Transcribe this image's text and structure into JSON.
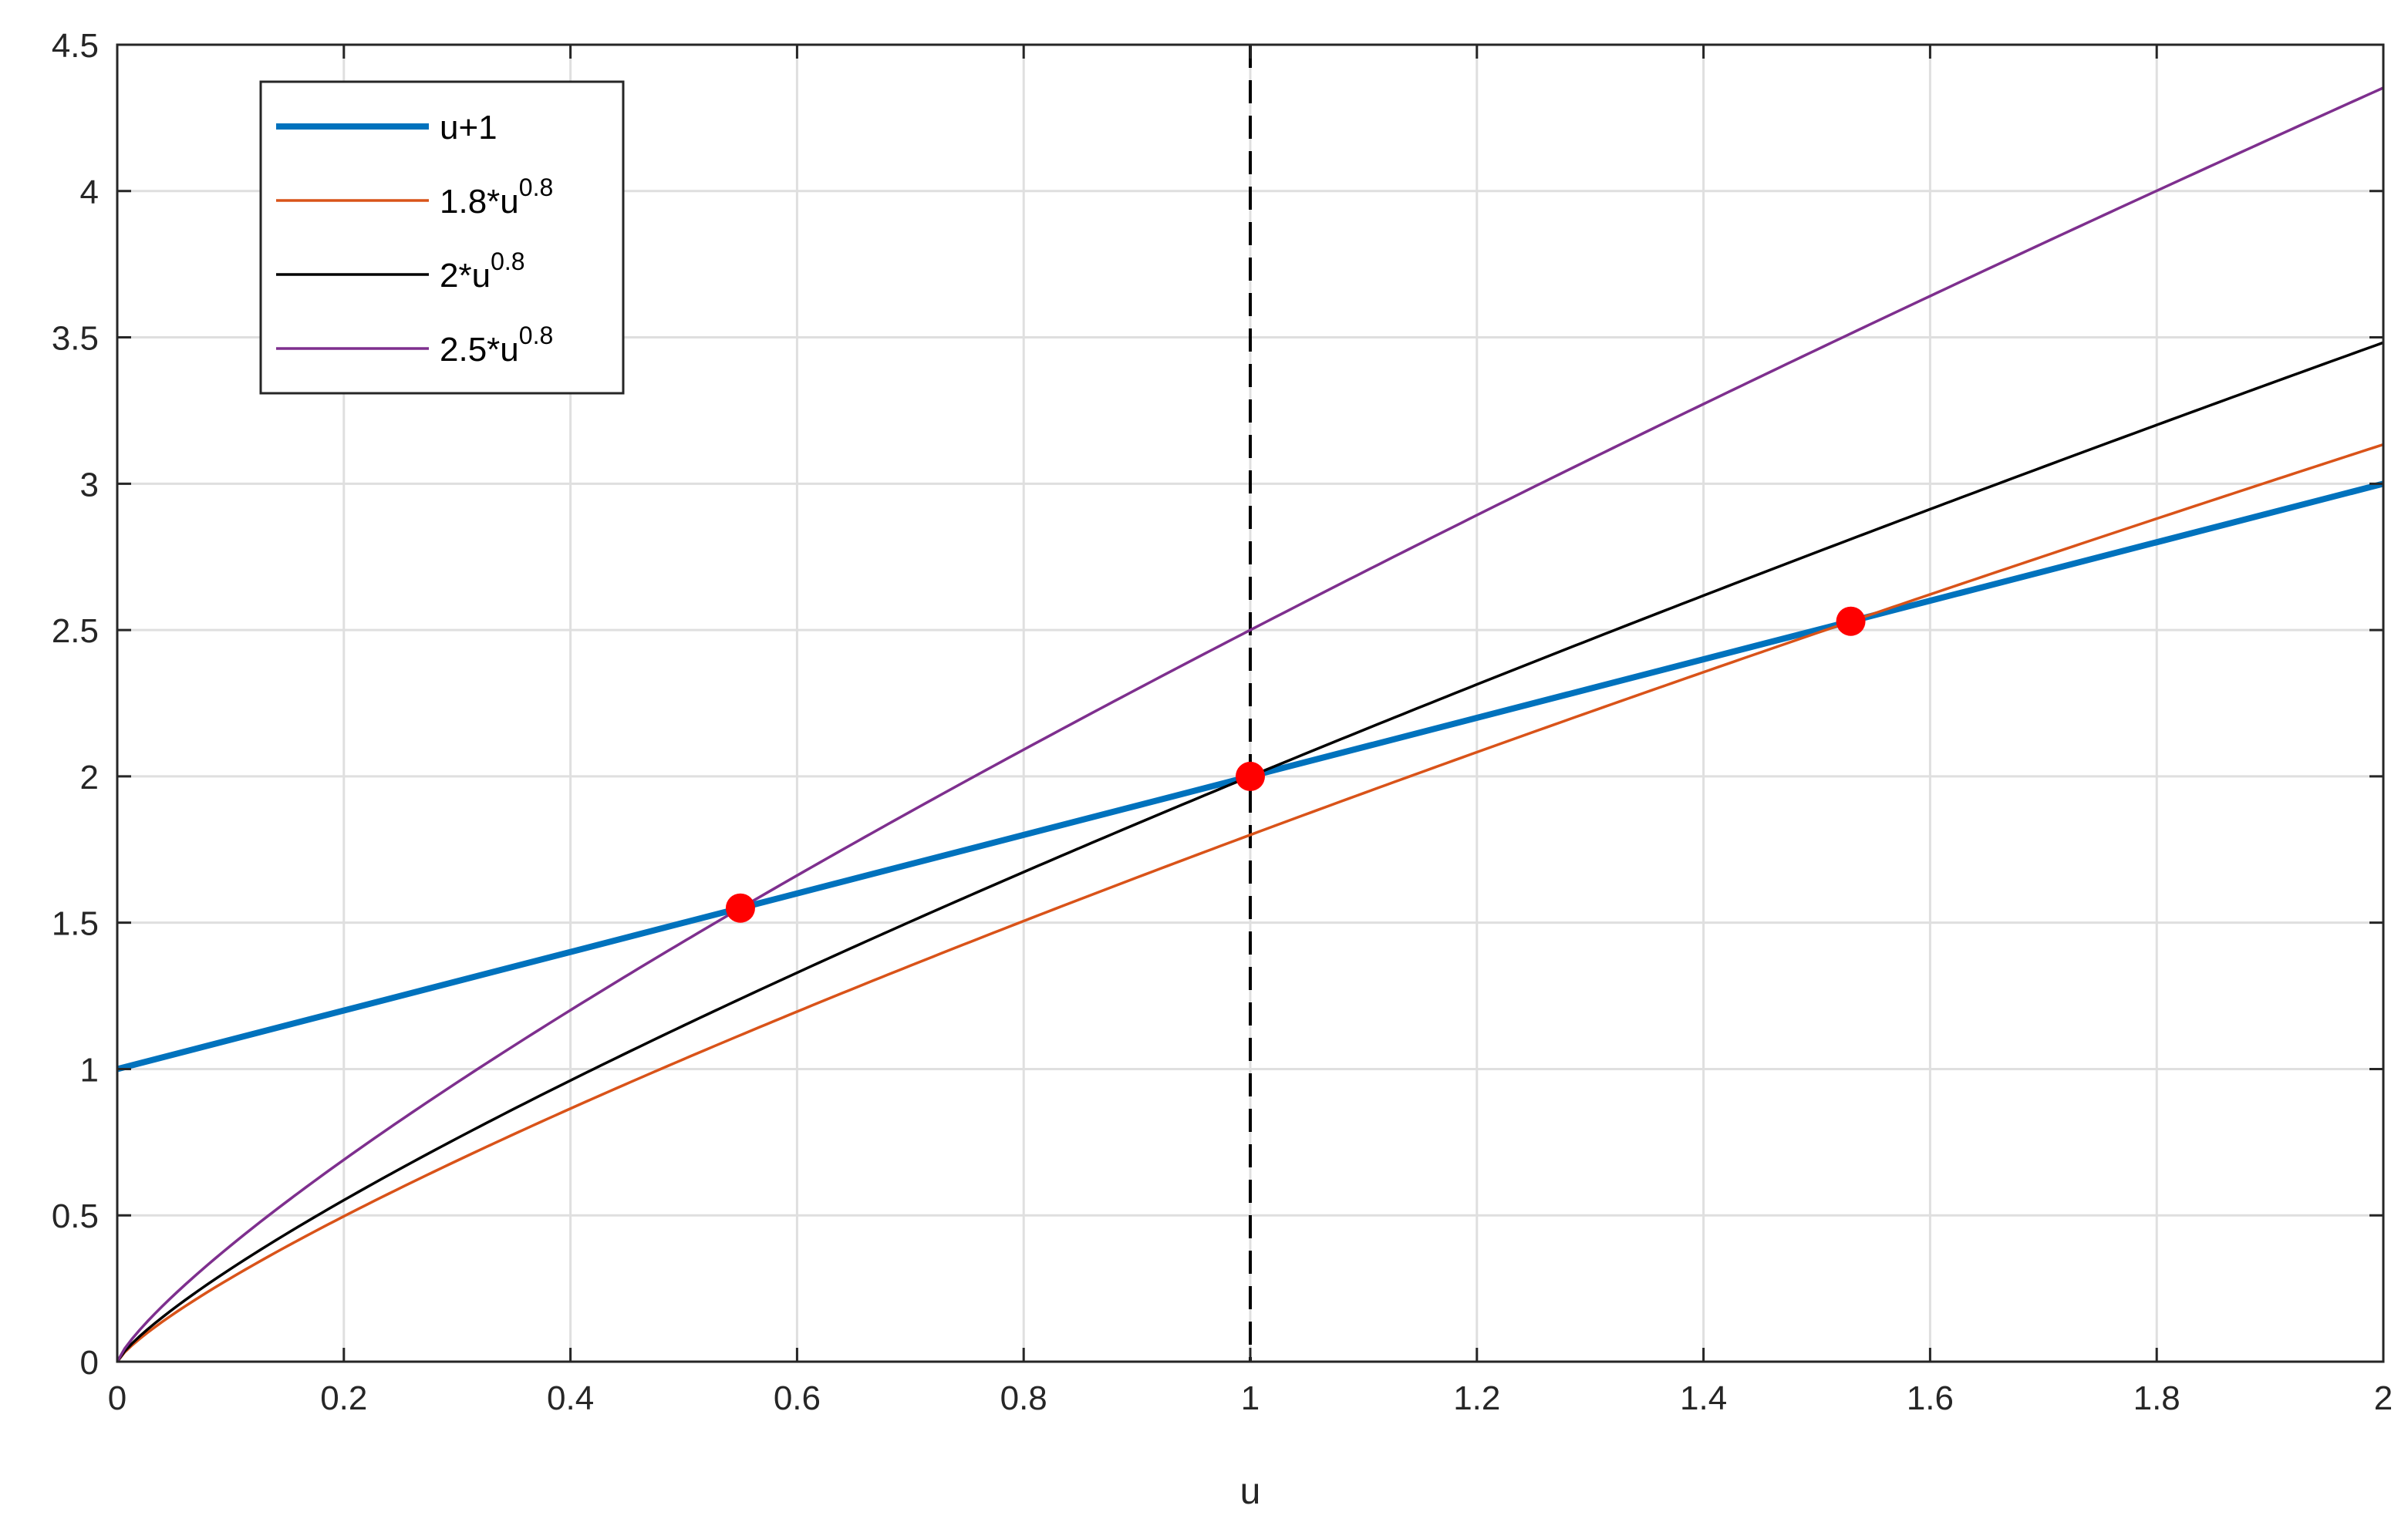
{
  "chart_data": {
    "type": "line",
    "xlabel": "u",
    "ylabel": "",
    "xlim": [
      0,
      2
    ],
    "ylim": [
      0,
      4.5
    ],
    "x_ticks": [
      0,
      0.2,
      0.4,
      0.6,
      0.8,
      1,
      1.2,
      1.4,
      1.6,
      1.8,
      2
    ],
    "x_tick_labels": [
      "0",
      "0.2",
      "0.4",
      "0.6",
      "0.8",
      "1",
      "1.2",
      "1.4",
      "1.6",
      "1.8",
      "2"
    ],
    "y_ticks": [
      0,
      0.5,
      1,
      1.5,
      2,
      2.5,
      3,
      3.5,
      4,
      4.5
    ],
    "y_tick_labels": [
      "0",
      "0.5",
      "1",
      "1.5",
      "2",
      "2.5",
      "3",
      "3.5",
      "4",
      "4.5"
    ],
    "grid": true,
    "legend_position": "top-left",
    "series": [
      {
        "name": "u+1",
        "legend_base": "u+1",
        "legend_sup": "",
        "formula": "linear",
        "coef": 1,
        "color": "#0072BD",
        "emphasis": "thick",
        "x": [
          0,
          0.5,
          1,
          1.5,
          2
        ],
        "values": [
          1,
          1.5,
          2,
          2.5,
          3
        ]
      },
      {
        "name": "1.8*u^0.8",
        "legend_base": "1.8*u",
        "legend_sup": "0.8",
        "formula": "power",
        "coef": 1.8,
        "exponent": 0.8,
        "color": "#D95319",
        "emphasis": "thin",
        "x": [
          0,
          0.5,
          1,
          1.5,
          2
        ],
        "values": [
          0,
          1.03,
          1.8,
          2.49,
          3.13
        ]
      },
      {
        "name": "2*u^0.8",
        "legend_base": "2*u",
        "legend_sup": "0.8",
        "formula": "power",
        "coef": 2,
        "exponent": 0.8,
        "color": "#000000",
        "emphasis": "thin",
        "x": [
          0,
          0.5,
          1,
          1.5,
          2
        ],
        "values": [
          0,
          1.15,
          2,
          2.77,
          3.48
        ]
      },
      {
        "name": "2.5*u^0.8",
        "legend_base": "2.5*u",
        "legend_sup": "0.8",
        "formula": "power",
        "coef": 2.5,
        "exponent": 0.8,
        "color": "#7E2F8E",
        "emphasis": "thin",
        "x": [
          0,
          0.5,
          1,
          1.5,
          2
        ],
        "values": [
          0,
          1.44,
          2.5,
          3.46,
          4.35
        ]
      }
    ],
    "reference_line": {
      "orientation": "vertical",
      "x": 1,
      "style": "dashed",
      "color": "#000000"
    },
    "highlight_points": [
      {
        "x": 0.55,
        "y": 1.55,
        "color": "#FF0000"
      },
      {
        "x": 1,
        "y": 2,
        "color": "#FF0000"
      },
      {
        "x": 1.53,
        "y": 2.53,
        "color": "#FF0000"
      }
    ]
  }
}
